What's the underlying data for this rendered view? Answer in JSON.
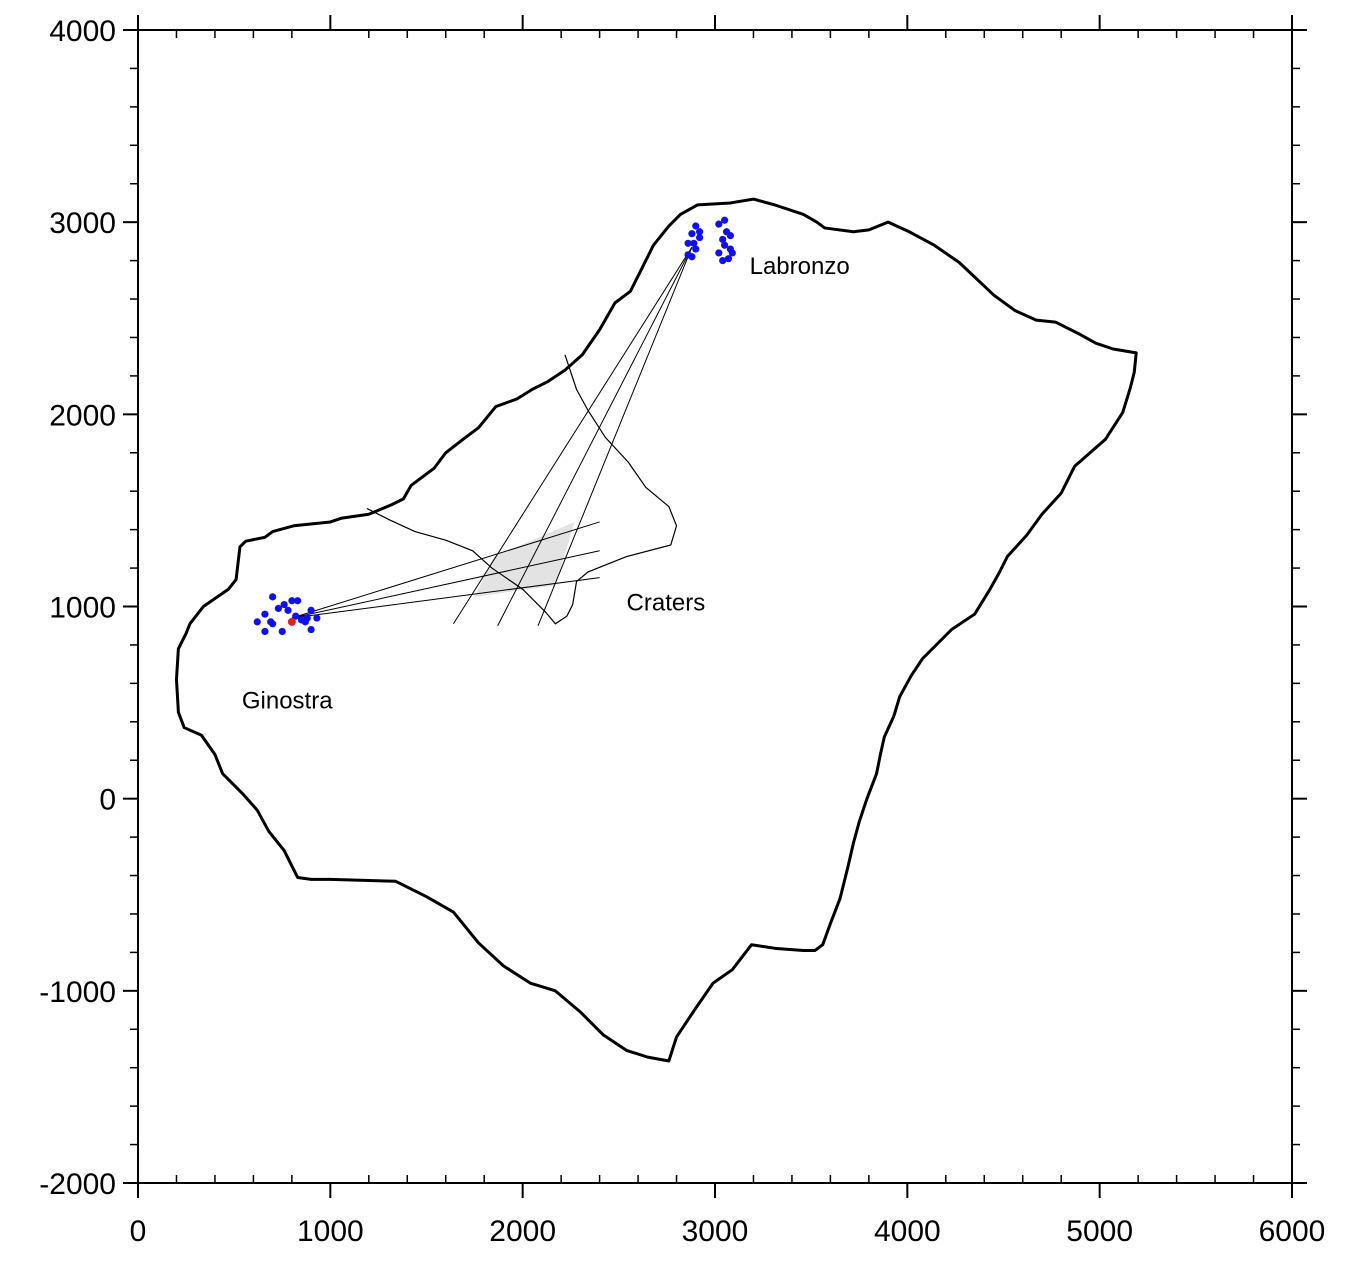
{
  "chart_data": {
    "type": "scatter",
    "title": "",
    "xlabel": "",
    "ylabel": "",
    "xlim": [
      0,
      6000
    ],
    "ylim": [
      -2000,
      4000
    ],
    "x_ticks": [
      0,
      1000,
      2000,
      3000,
      4000,
      5000,
      6000
    ],
    "y_ticks": [
      -2000,
      -1000,
      0,
      1000,
      2000,
      3000,
      4000
    ],
    "x_tick_labels": [
      "0",
      "1000",
      "2000",
      "3000",
      "4000",
      "5000",
      "6000"
    ],
    "y_tick_labels": [
      "-2000",
      "-1000",
      "0",
      "1000",
      "2000",
      "3000",
      "4000"
    ],
    "minor_tick_step": 200,
    "grid": false,
    "colors": {
      "stations": "#1010ee",
      "origin_marker": "#dd2222",
      "crater_zone": "#e3e3e3",
      "coastline": "#000000"
    },
    "labels": [
      {
        "text": "Labronzo",
        "x": 3180,
        "y": 2730
      },
      {
        "text": "Craters",
        "x": 2540,
        "y": 980
      },
      {
        "text": "Ginostra",
        "x": 540,
        "y": 470
      }
    ],
    "coastline": [
      [
        2760,
        -1365
      ],
      [
        2650,
        -1345
      ],
      [
        2540,
        -1310
      ],
      [
        2420,
        -1230
      ],
      [
        2300,
        -1110
      ],
      [
        2170,
        -1000
      ],
      [
        2040,
        -960
      ],
      [
        1900,
        -870
      ],
      [
        1770,
        -750
      ],
      [
        1640,
        -590
      ],
      [
        1500,
        -510
      ],
      [
        1340,
        -430
      ],
      [
        1000,
        -420
      ],
      [
        900,
        -420
      ],
      [
        830,
        -410
      ],
      [
        760,
        -270
      ],
      [
        680,
        -170
      ],
      [
        620,
        -60
      ],
      [
        540,
        30
      ],
      [
        440,
        130
      ],
      [
        400,
        230
      ],
      [
        330,
        330
      ],
      [
        240,
        370
      ],
      [
        210,
        450
      ],
      [
        200,
        620
      ],
      [
        210,
        780
      ],
      [
        250,
        860
      ],
      [
        270,
        910
      ],
      [
        340,
        1000
      ],
      [
        470,
        1090
      ],
      [
        510,
        1140
      ],
      [
        530,
        1310
      ],
      [
        560,
        1340
      ],
      [
        660,
        1360
      ],
      [
        700,
        1390
      ],
      [
        810,
        1420
      ],
      [
        1000,
        1440
      ],
      [
        1060,
        1460
      ],
      [
        1200,
        1480
      ],
      [
        1320,
        1530
      ],
      [
        1380,
        1560
      ],
      [
        1420,
        1630
      ],
      [
        1540,
        1720
      ],
      [
        1600,
        1800
      ],
      [
        1690,
        1870
      ],
      [
        1770,
        1930
      ],
      [
        1860,
        2040
      ],
      [
        1970,
        2080
      ],
      [
        2050,
        2130
      ],
      [
        2130,
        2170
      ],
      [
        2220,
        2230
      ],
      [
        2310,
        2310
      ],
      [
        2400,
        2440
      ],
      [
        2480,
        2580
      ],
      [
        2560,
        2640
      ],
      [
        2620,
        2760
      ],
      [
        2680,
        2880
      ],
      [
        2760,
        2980
      ],
      [
        2820,
        3040
      ],
      [
        2910,
        3090
      ],
      [
        3080,
        3100
      ],
      [
        3200,
        3120
      ],
      [
        3310,
        3090
      ],
      [
        3460,
        3040
      ],
      [
        3530,
        3000
      ],
      [
        3570,
        2970
      ],
      [
        3720,
        2950
      ],
      [
        3800,
        2960
      ],
      [
        3900,
        3000
      ],
      [
        4010,
        2950
      ],
      [
        4140,
        2880
      ],
      [
        4270,
        2790
      ],
      [
        4450,
        2620
      ],
      [
        4560,
        2540
      ],
      [
        4670,
        2490
      ],
      [
        4770,
        2480
      ],
      [
        4890,
        2420
      ],
      [
        4980,
        2370
      ],
      [
        5070,
        2340
      ],
      [
        5190,
        2320
      ],
      [
        5180,
        2220
      ],
      [
        5160,
        2140
      ],
      [
        5120,
        2010
      ],
      [
        5030,
        1870
      ],
      [
        4950,
        1800
      ],
      [
        4870,
        1730
      ],
      [
        4800,
        1590
      ],
      [
        4700,
        1480
      ],
      [
        4620,
        1370
      ],
      [
        4520,
        1260
      ],
      [
        4480,
        1180
      ],
      [
        4430,
        1090
      ],
      [
        4350,
        960
      ],
      [
        4230,
        880
      ],
      [
        4160,
        810
      ],
      [
        4080,
        730
      ],
      [
        4020,
        640
      ],
      [
        3960,
        530
      ],
      [
        3930,
        430
      ],
      [
        3880,
        320
      ],
      [
        3860,
        230
      ],
      [
        3840,
        130
      ],
      [
        3790,
        0
      ],
      [
        3750,
        -120
      ],
      [
        3720,
        -230
      ],
      [
        3690,
        -360
      ],
      [
        3650,
        -520
      ],
      [
        3600,
        -650
      ],
      [
        3560,
        -760
      ],
      [
        3520,
        -790
      ],
      [
        3460,
        -790
      ],
      [
        3320,
        -780
      ],
      [
        3190,
        -760
      ],
      [
        3090,
        -890
      ],
      [
        2990,
        -960
      ],
      [
        2900,
        -1090
      ],
      [
        2800,
        -1240
      ]
    ],
    "crater_boundary": [
      [
        1190,
        1510
      ],
      [
        1310,
        1450
      ],
      [
        1440,
        1390
      ],
      [
        1600,
        1345
      ],
      [
        1740,
        1290
      ],
      [
        1840,
        1200
      ],
      [
        2000,
        1090
      ],
      [
        2120,
        970
      ],
      [
        2170,
        910
      ],
      [
        2230,
        950
      ],
      [
        2260,
        1010
      ],
      [
        2280,
        1130
      ],
      [
        2340,
        1180
      ],
      [
        2540,
        1260
      ],
      [
        2770,
        1320
      ],
      [
        2800,
        1420
      ],
      [
        2760,
        1520
      ],
      [
        2640,
        1620
      ],
      [
        2550,
        1750
      ],
      [
        2430,
        1880
      ],
      [
        2340,
        2020
      ],
      [
        2280,
        2130
      ],
      [
        2240,
        2250
      ],
      [
        2220,
        2310
      ]
    ],
    "sight_lines": [
      [
        [
          800,
          940
        ],
        [
          2400,
          1440
        ]
      ],
      [
        [
          800,
          940
        ],
        [
          2400,
          1290
        ]
      ],
      [
        [
          800,
          940
        ],
        [
          2400,
          1150
        ]
      ],
      [
        [
          2880,
          2870
        ],
        [
          1640,
          910
        ]
      ],
      [
        [
          2880,
          2870
        ],
        [
          1870,
          900
        ]
      ],
      [
        [
          2880,
          2870
        ],
        [
          2080,
          900
        ]
      ]
    ],
    "overlap_zone": [
      [
        1850,
        1260
      ],
      [
        2270,
        1440
      ],
      [
        2170,
        1110
      ],
      [
        1750,
        1050
      ]
    ],
    "series": [
      {
        "name": "",
        "points": [
          [
            700,
            1050
          ],
          [
            760,
            1010
          ],
          [
            800,
            1030
          ],
          [
            830,
            1030
          ],
          [
            780,
            980
          ],
          [
            730,
            990
          ],
          [
            660,
            960
          ],
          [
            690,
            920
          ],
          [
            700,
            910
          ],
          [
            620,
            920
          ],
          [
            660,
            870
          ],
          [
            750,
            870
          ],
          [
            820,
            950
          ],
          [
            850,
            930
          ],
          [
            870,
            920
          ],
          [
            900,
            980
          ],
          [
            900,
            880
          ],
          [
            930,
            940
          ],
          [
            880,
            940
          ],
          [
            2880,
            2820
          ],
          [
            2900,
            2860
          ],
          [
            2890,
            2890
          ],
          [
            2920,
            2920
          ],
          [
            2920,
            2950
          ],
          [
            2880,
            2940
          ],
          [
            2900,
            2980
          ],
          [
            2860,
            2830
          ],
          [
            2860,
            2890
          ],
          [
            3020,
            2990
          ],
          [
            3050,
            3010
          ],
          [
            3060,
            2950
          ],
          [
            3080,
            2930
          ],
          [
            3040,
            2910
          ],
          [
            3050,
            2880
          ],
          [
            3080,
            2860
          ],
          [
            3090,
            2840
          ],
          [
            3020,
            2840
          ],
          [
            3040,
            2800
          ],
          [
            3070,
            2810
          ]
        ]
      }
    ],
    "origin_marker": [
      800,
      920
    ]
  }
}
